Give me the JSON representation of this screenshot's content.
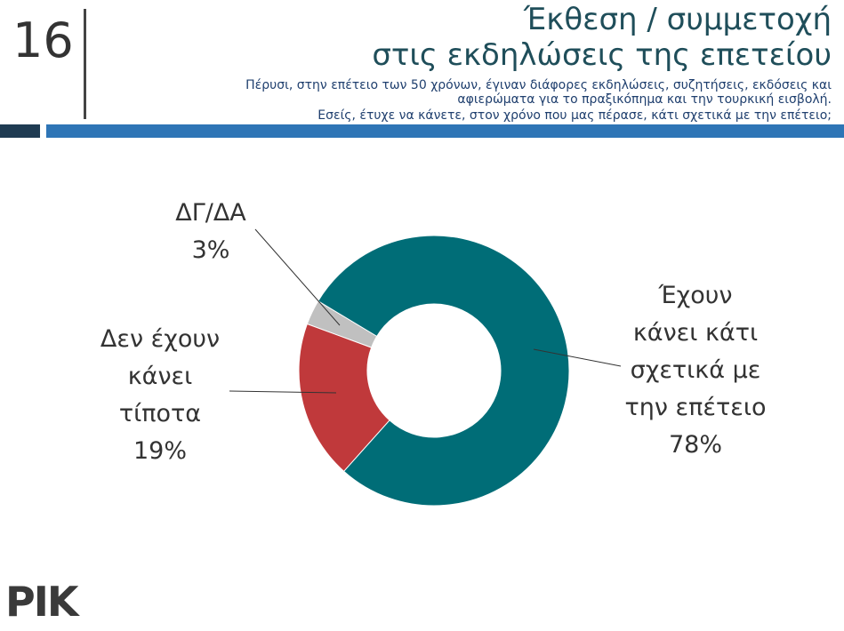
{
  "page_number": "16",
  "header": {
    "title_lines": [
      "Έκθεση / συμμετοχή",
      "στις εκδηλώσεις της επετείου"
    ],
    "subtitle_lines": [
      "Πέρυσι, στην επέτειο των 50 χρόνων, έγιναν διάφορες εκδηλώσεις, συζητήσεις, εκδόσεις και",
      "αφιερώματα για το πραξικόπημα και την τουρκική εισβολή.",
      "Εσείς, έτυχε να κάνετε, στον χρόνο που μας πέρασε, κάτι σχετικά με την επέτειο;"
    ]
  },
  "chart_data": {
    "type": "donut",
    "categories": [
      "Έχουν\nκάνει κάτι\nσχετικά με\nτην επέτειο",
      "Δεν έχουν\nκάνει\nτίποτα",
      "ΔΓ/ΔΑ"
    ],
    "values": [
      78,
      19,
      3
    ],
    "value_labels": [
      "78%",
      "19%",
      "3%"
    ],
    "colors": [
      "#006d77",
      "#c0393b",
      "#c0c0c0"
    ]
  },
  "logo": "ΡΙΚ"
}
